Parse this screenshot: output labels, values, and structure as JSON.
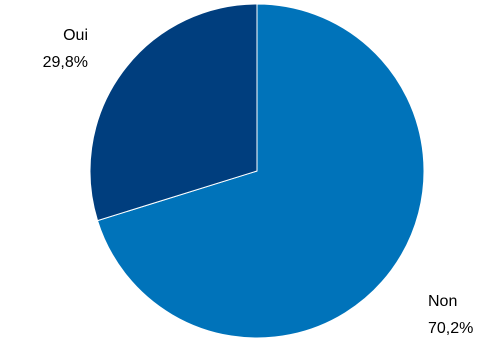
{
  "chart_data": {
    "type": "pie",
    "title": "",
    "slices": [
      {
        "label": "Non",
        "value": 70.2,
        "display_value": "70,2%",
        "color": "#0073BA"
      },
      {
        "label": "Oui",
        "value": 29.8,
        "display_value": "29,8%",
        "color": "#003E7E"
      }
    ],
    "start_angle": "12 o'clock",
    "direction": "clockwise"
  }
}
